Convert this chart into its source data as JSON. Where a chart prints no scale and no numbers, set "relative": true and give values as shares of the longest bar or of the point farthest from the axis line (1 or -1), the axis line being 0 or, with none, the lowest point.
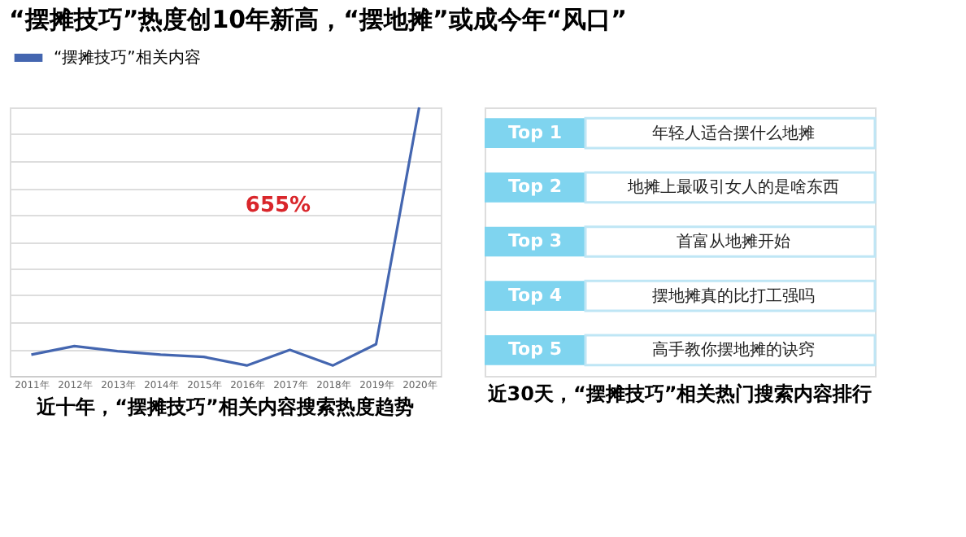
{
  "chart_data": [
    {
      "type": "line",
      "title": "“摆摊技巧”热度创10年新高，“摆地摊”或成今年“风口”",
      "relative": true,
      "grid": "y",
      "legend": "top left",
      "categories": [
        "2011年",
        "2012年",
        "2013年",
        "2014年",
        "2015年",
        "2016年",
        "2017年",
        "2018年",
        "2019年",
        "2020年"
      ],
      "series": [
        {
          "name": "“摆摊技巧”相关内容",
          "color": "#4466b0",
          "values": [
            0.079,
            0.111,
            0.092,
            0.079,
            0.071,
            0.039,
            0.097,
            0.039,
            0.118,
            1
          ]
        }
      ],
      "annotations": [
        "近十年，“摆摊技巧”相关内容搜索热度趋势",
        "655%"
      ]
    },
    {
      "type": "other",
      "title": "近30天，“摆摊技巧”相关热门搜索内容排行",
      "categories": [
        "Top 1",
        "Top 2",
        "Top 3",
        "Top 4",
        "Top 5"
      ],
      "annotations": [
        "年轻人适合摆什么地摊",
        "地摊上最吸引女人的是啥东西",
        "首富从地摊开始",
        "摆地摊真的比打工强吗",
        "高手教你摆地摊的诀窍"
      ]
    }
  ]
}
